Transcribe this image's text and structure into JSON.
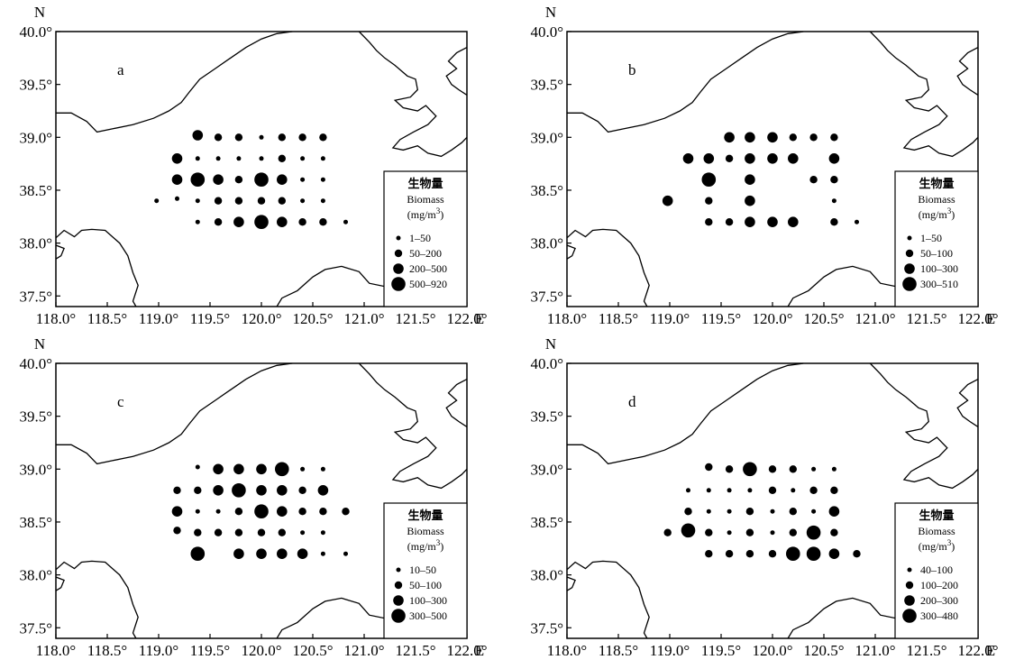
{
  "lon_labels": [
    "118.0°",
    "118.5°",
    "119.0°",
    "119.5°",
    "120.0°",
    "120.5°",
    "121.0°",
    "121.5°",
    "122.0°"
  ],
  "lat_labels": [
    "40.0°",
    "39.5°",
    "39.0°",
    "38.5°",
    "38.0°",
    "37.5°"
  ],
  "north_label": "N",
  "east_label": "E",
  "legend": {
    "title_zh": "生物量",
    "title_en": "Biomass",
    "unit": "(mg/m",
    "unit_sup": "3",
    "unit_close": ")"
  },
  "panels": [
    {
      "label": "a",
      "classes": [
        "1–50",
        "50–200",
        "200–500",
        "500–920"
      ],
      "stations": [
        {
          "lon": 119.38,
          "lat": 39.02,
          "c": 2
        },
        {
          "lon": 119.58,
          "lat": 39.0,
          "c": 1
        },
        {
          "lon": 119.78,
          "lat": 39.0,
          "c": 1
        },
        {
          "lon": 120.0,
          "lat": 39.0,
          "c": 0
        },
        {
          "lon": 120.2,
          "lat": 39.0,
          "c": 1
        },
        {
          "lon": 120.4,
          "lat": 39.0,
          "c": 1
        },
        {
          "lon": 120.6,
          "lat": 39.0,
          "c": 1
        },
        {
          "lon": 119.18,
          "lat": 38.8,
          "c": 2
        },
        {
          "lon": 119.38,
          "lat": 38.8,
          "c": 0
        },
        {
          "lon": 119.58,
          "lat": 38.8,
          "c": 0
        },
        {
          "lon": 119.78,
          "lat": 38.8,
          "c": 0
        },
        {
          "lon": 120.0,
          "lat": 38.8,
          "c": 0
        },
        {
          "lon": 120.2,
          "lat": 38.8,
          "c": 1
        },
        {
          "lon": 120.4,
          "lat": 38.8,
          "c": 0
        },
        {
          "lon": 120.6,
          "lat": 38.8,
          "c": 0
        },
        {
          "lon": 119.18,
          "lat": 38.6,
          "c": 2
        },
        {
          "lon": 119.38,
          "lat": 38.6,
          "c": 3
        },
        {
          "lon": 119.58,
          "lat": 38.6,
          "c": 2
        },
        {
          "lon": 119.78,
          "lat": 38.6,
          "c": 1
        },
        {
          "lon": 120.0,
          "lat": 38.6,
          "c": 3
        },
        {
          "lon": 120.2,
          "lat": 38.6,
          "c": 2
        },
        {
          "lon": 120.4,
          "lat": 38.6,
          "c": 0
        },
        {
          "lon": 120.6,
          "lat": 38.6,
          "c": 0
        },
        {
          "lon": 118.98,
          "lat": 38.4,
          "c": 0
        },
        {
          "lon": 119.18,
          "lat": 38.42,
          "c": 0
        },
        {
          "lon": 119.38,
          "lat": 38.4,
          "c": 0
        },
        {
          "lon": 119.58,
          "lat": 38.4,
          "c": 1
        },
        {
          "lon": 119.78,
          "lat": 38.4,
          "c": 1
        },
        {
          "lon": 120.0,
          "lat": 38.4,
          "c": 1
        },
        {
          "lon": 120.2,
          "lat": 38.4,
          "c": 1
        },
        {
          "lon": 120.4,
          "lat": 38.4,
          "c": 0
        },
        {
          "lon": 120.6,
          "lat": 38.4,
          "c": 0
        },
        {
          "lon": 119.38,
          "lat": 38.2,
          "c": 0
        },
        {
          "lon": 119.58,
          "lat": 38.2,
          "c": 1
        },
        {
          "lon": 119.78,
          "lat": 38.2,
          "c": 2
        },
        {
          "lon": 120.0,
          "lat": 38.2,
          "c": 3
        },
        {
          "lon": 120.2,
          "lat": 38.2,
          "c": 2
        },
        {
          "lon": 120.4,
          "lat": 38.2,
          "c": 1
        },
        {
          "lon": 120.6,
          "lat": 38.2,
          "c": 1
        },
        {
          "lon": 120.82,
          "lat": 38.2,
          "c": 0
        }
      ]
    },
    {
      "label": "b",
      "classes": [
        "1–50",
        "50–100",
        "100–300",
        "300–510"
      ],
      "stations": [
        {
          "lon": 119.58,
          "lat": 39.0,
          "c": 2
        },
        {
          "lon": 119.78,
          "lat": 39.0,
          "c": 2
        },
        {
          "lon": 120.0,
          "lat": 39.0,
          "c": 2
        },
        {
          "lon": 120.2,
          "lat": 39.0,
          "c": 1
        },
        {
          "lon": 120.4,
          "lat": 39.0,
          "c": 1
        },
        {
          "lon": 120.6,
          "lat": 39.0,
          "c": 1
        },
        {
          "lon": 119.18,
          "lat": 38.8,
          "c": 2
        },
        {
          "lon": 119.38,
          "lat": 38.8,
          "c": 2
        },
        {
          "lon": 119.58,
          "lat": 38.8,
          "c": 1
        },
        {
          "lon": 119.78,
          "lat": 38.8,
          "c": 2
        },
        {
          "lon": 120.0,
          "lat": 38.8,
          "c": 2
        },
        {
          "lon": 120.2,
          "lat": 38.8,
          "c": 2
        },
        {
          "lon": 120.6,
          "lat": 38.8,
          "c": 2
        },
        {
          "lon": 119.38,
          "lat": 38.6,
          "c": 3
        },
        {
          "lon": 119.78,
          "lat": 38.6,
          "c": 2
        },
        {
          "lon": 120.4,
          "lat": 38.6,
          "c": 1
        },
        {
          "lon": 120.6,
          "lat": 38.6,
          "c": 1
        },
        {
          "lon": 118.98,
          "lat": 38.4,
          "c": 2
        },
        {
          "lon": 119.38,
          "lat": 38.4,
          "c": 1
        },
        {
          "lon": 119.78,
          "lat": 38.4,
          "c": 2
        },
        {
          "lon": 120.6,
          "lat": 38.4,
          "c": 0
        },
        {
          "lon": 119.38,
          "lat": 38.2,
          "c": 1
        },
        {
          "lon": 119.58,
          "lat": 38.2,
          "c": 1
        },
        {
          "lon": 119.78,
          "lat": 38.2,
          "c": 2
        },
        {
          "lon": 120.0,
          "lat": 38.2,
          "c": 2
        },
        {
          "lon": 120.2,
          "lat": 38.2,
          "c": 2
        },
        {
          "lon": 120.6,
          "lat": 38.2,
          "c": 1
        },
        {
          "lon": 120.82,
          "lat": 38.2,
          "c": 0
        }
      ]
    },
    {
      "label": "c",
      "classes": [
        "10–50",
        "50–100",
        "100–300",
        "300–500"
      ],
      "stations": [
        {
          "lon": 119.38,
          "lat": 39.02,
          "c": 0
        },
        {
          "lon": 119.58,
          "lat": 39.0,
          "c": 2
        },
        {
          "lon": 119.78,
          "lat": 39.0,
          "c": 2
        },
        {
          "lon": 120.0,
          "lat": 39.0,
          "c": 2
        },
        {
          "lon": 120.2,
          "lat": 39.0,
          "c": 3
        },
        {
          "lon": 120.4,
          "lat": 39.0,
          "c": 0
        },
        {
          "lon": 120.6,
          "lat": 39.0,
          "c": 0
        },
        {
          "lon": 119.18,
          "lat": 38.8,
          "c": 1
        },
        {
          "lon": 119.38,
          "lat": 38.8,
          "c": 1
        },
        {
          "lon": 119.58,
          "lat": 38.8,
          "c": 2
        },
        {
          "lon": 119.78,
          "lat": 38.8,
          "c": 3
        },
        {
          "lon": 120.0,
          "lat": 38.8,
          "c": 2
        },
        {
          "lon": 120.2,
          "lat": 38.8,
          "c": 2
        },
        {
          "lon": 120.4,
          "lat": 38.8,
          "c": 1
        },
        {
          "lon": 120.6,
          "lat": 38.8,
          "c": 2
        },
        {
          "lon": 119.18,
          "lat": 38.6,
          "c": 2
        },
        {
          "lon": 119.38,
          "lat": 38.6,
          "c": 0
        },
        {
          "lon": 119.58,
          "lat": 38.6,
          "c": 0
        },
        {
          "lon": 119.78,
          "lat": 38.6,
          "c": 1
        },
        {
          "lon": 120.0,
          "lat": 38.6,
          "c": 3
        },
        {
          "lon": 120.2,
          "lat": 38.6,
          "c": 2
        },
        {
          "lon": 120.4,
          "lat": 38.6,
          "c": 1
        },
        {
          "lon": 120.6,
          "lat": 38.6,
          "c": 1
        },
        {
          "lon": 120.82,
          "lat": 38.6,
          "c": 1
        },
        {
          "lon": 119.18,
          "lat": 38.42,
          "c": 1
        },
        {
          "lon": 119.38,
          "lat": 38.4,
          "c": 1
        },
        {
          "lon": 119.58,
          "lat": 38.4,
          "c": 1
        },
        {
          "lon": 119.78,
          "lat": 38.4,
          "c": 1
        },
        {
          "lon": 120.0,
          "lat": 38.4,
          "c": 1
        },
        {
          "lon": 120.2,
          "lat": 38.4,
          "c": 1
        },
        {
          "lon": 120.4,
          "lat": 38.4,
          "c": 0
        },
        {
          "lon": 120.6,
          "lat": 38.4,
          "c": 0
        },
        {
          "lon": 119.38,
          "lat": 38.2,
          "c": 3
        },
        {
          "lon": 119.78,
          "lat": 38.2,
          "c": 2
        },
        {
          "lon": 120.0,
          "lat": 38.2,
          "c": 2
        },
        {
          "lon": 120.2,
          "lat": 38.2,
          "c": 2
        },
        {
          "lon": 120.4,
          "lat": 38.2,
          "c": 2
        },
        {
          "lon": 120.6,
          "lat": 38.2,
          "c": 0
        },
        {
          "lon": 120.82,
          "lat": 38.2,
          "c": 0
        }
      ]
    },
    {
      "label": "d",
      "classes": [
        "40–100",
        "100–200",
        "200–300",
        "300–480"
      ],
      "stations": [
        {
          "lon": 119.38,
          "lat": 39.02,
          "c": 1
        },
        {
          "lon": 119.58,
          "lat": 39.0,
          "c": 1
        },
        {
          "lon": 119.78,
          "lat": 39.0,
          "c": 3
        },
        {
          "lon": 120.0,
          "lat": 39.0,
          "c": 1
        },
        {
          "lon": 120.2,
          "lat": 39.0,
          "c": 1
        },
        {
          "lon": 120.4,
          "lat": 39.0,
          "c": 0
        },
        {
          "lon": 120.6,
          "lat": 39.0,
          "c": 0
        },
        {
          "lon": 119.18,
          "lat": 38.8,
          "c": 0
        },
        {
          "lon": 119.38,
          "lat": 38.8,
          "c": 0
        },
        {
          "lon": 119.58,
          "lat": 38.8,
          "c": 0
        },
        {
          "lon": 119.78,
          "lat": 38.8,
          "c": 0
        },
        {
          "lon": 120.0,
          "lat": 38.8,
          "c": 1
        },
        {
          "lon": 120.2,
          "lat": 38.8,
          "c": 0
        },
        {
          "lon": 120.4,
          "lat": 38.8,
          "c": 1
        },
        {
          "lon": 120.6,
          "lat": 38.8,
          "c": 1
        },
        {
          "lon": 119.18,
          "lat": 38.6,
          "c": 1
        },
        {
          "lon": 119.38,
          "lat": 38.6,
          "c": 0
        },
        {
          "lon": 119.58,
          "lat": 38.6,
          "c": 0
        },
        {
          "lon": 119.78,
          "lat": 38.6,
          "c": 1
        },
        {
          "lon": 120.0,
          "lat": 38.6,
          "c": 0
        },
        {
          "lon": 120.2,
          "lat": 38.6,
          "c": 1
        },
        {
          "lon": 120.4,
          "lat": 38.6,
          "c": 0
        },
        {
          "lon": 120.6,
          "lat": 38.6,
          "c": 2
        },
        {
          "lon": 118.98,
          "lat": 38.4,
          "c": 1
        },
        {
          "lon": 119.18,
          "lat": 38.42,
          "c": 3
        },
        {
          "lon": 119.38,
          "lat": 38.4,
          "c": 1
        },
        {
          "lon": 119.58,
          "lat": 38.4,
          "c": 0
        },
        {
          "lon": 119.78,
          "lat": 38.4,
          "c": 1
        },
        {
          "lon": 120.0,
          "lat": 38.4,
          "c": 0
        },
        {
          "lon": 120.2,
          "lat": 38.4,
          "c": 1
        },
        {
          "lon": 120.4,
          "lat": 38.4,
          "c": 3
        },
        {
          "lon": 120.6,
          "lat": 38.4,
          "c": 1
        },
        {
          "lon": 119.38,
          "lat": 38.2,
          "c": 1
        },
        {
          "lon": 119.58,
          "lat": 38.2,
          "c": 1
        },
        {
          "lon": 119.78,
          "lat": 38.2,
          "c": 1
        },
        {
          "lon": 120.0,
          "lat": 38.2,
          "c": 1
        },
        {
          "lon": 120.2,
          "lat": 38.2,
          "c": 3
        },
        {
          "lon": 120.4,
          "lat": 38.2,
          "c": 3
        },
        {
          "lon": 120.6,
          "lat": 38.2,
          "c": 2
        },
        {
          "lon": 120.82,
          "lat": 38.2,
          "c": 1
        }
      ]
    }
  ]
}
